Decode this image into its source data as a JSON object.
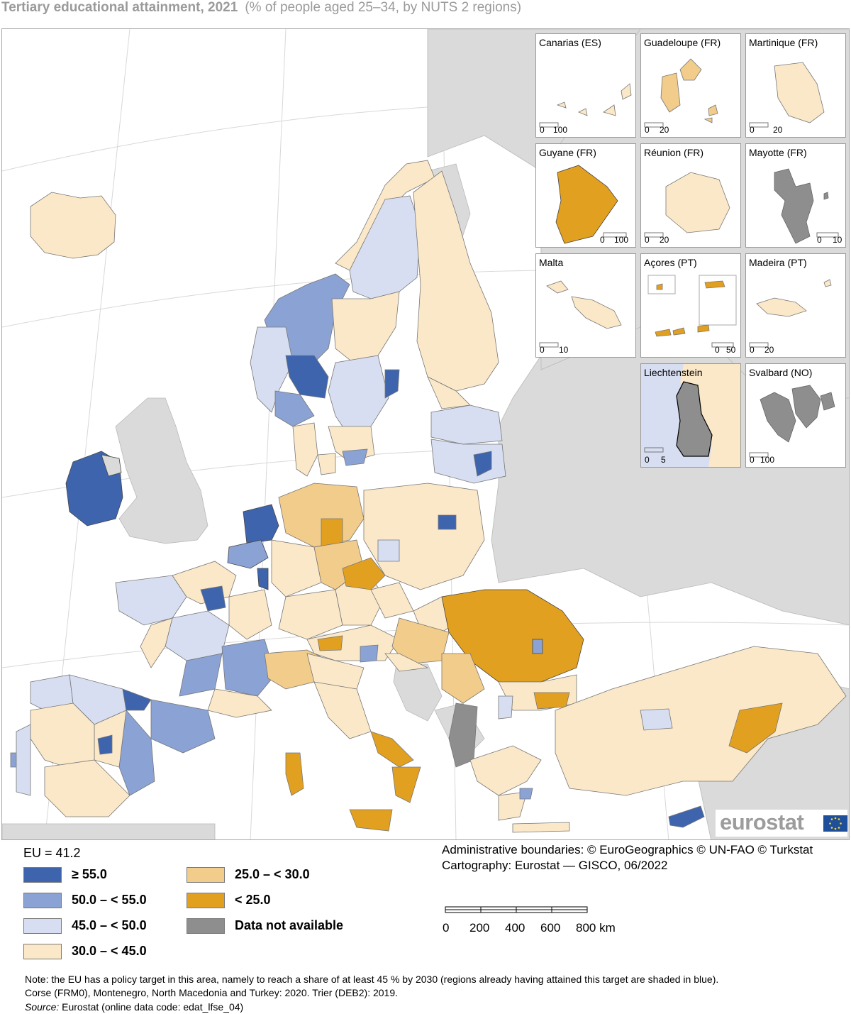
{
  "title": "Tertiary educational attainment, 2021",
  "subtitle": "(% of people aged 25–34, by NUTS 2 regions)",
  "colors": {
    "ge55": "#3e64ad",
    "c50_55": "#8aa2d4",
    "c45_50": "#d7def1",
    "c30_45": "#fbe8c8",
    "c25_30": "#f1cc8a",
    "lt25": "#e2a020",
    "na": "#8e8e8e",
    "nonEU": "#dadada",
    "sea": "#ffffff",
    "border": "#000000"
  },
  "insets": [
    {
      "label": "Canarias (ES)",
      "scale_start": "0",
      "scale_end": "100",
      "fill": "c30_45"
    },
    {
      "label": "Guadeloupe (FR)",
      "scale_start": "0",
      "scale_end": "20",
      "fill": "c25_30"
    },
    {
      "label": "Martinique (FR)",
      "scale_start": "0",
      "scale_end": "20",
      "fill": "c30_45"
    },
    {
      "label": "Guyane (FR)",
      "scale_start": "0",
      "scale_end": "100",
      "fill": "lt25"
    },
    {
      "label": "Réunion (FR)",
      "scale_start": "0",
      "scale_end": "20",
      "fill": "c30_45"
    },
    {
      "label": "Mayotte (FR)",
      "scale_start": "0",
      "scale_end": "10",
      "fill": "na"
    },
    {
      "label": "Malta",
      "scale_start": "0",
      "scale_end": "10",
      "fill": "c30_45"
    },
    {
      "label": "Açores (PT)",
      "scale_start": "0",
      "scale_end": "50",
      "fill": "lt25"
    },
    {
      "label": "Madeira (PT)",
      "scale_start": "0",
      "scale_end": "20",
      "fill": "c30_45"
    },
    {
      "label": "Liechtenstein",
      "scale_start": "0",
      "scale_end": "5",
      "fill": "na"
    },
    {
      "label": "Svalbard (NO)",
      "scale_start": "0",
      "scale_end": "100",
      "fill": "na"
    }
  ],
  "logo": "eurostat",
  "legend": {
    "eu_value": "EU = 41.2",
    "items": [
      {
        "label": "≥ 55.0",
        "color": "#3e64ad"
      },
      {
        "label": "50.0 – < 55.0",
        "color": "#8aa2d4"
      },
      {
        "label": "45.0 – < 50.0",
        "color": "#d7def1"
      },
      {
        "label": "30.0 – < 45.0",
        "color": "#fbe8c8"
      },
      {
        "label": "25.0 – < 30.0",
        "color": "#f1cc8a"
      },
      {
        "label": "< 25.0",
        "color": "#e2a020"
      },
      {
        "label": "Data not available",
        "color": "#8e8e8e"
      }
    ]
  },
  "credits": {
    "line1": "Administrative boundaries: © EuroGeographics © UN-FAO © Turkstat",
    "line2": "Cartography: Eurostat — GISCO, 06/2022"
  },
  "scalebar": {
    "labels": [
      "0",
      "200",
      "400",
      "600",
      "800 km"
    ]
  },
  "note": "Note: the EU has a policy target in this area, namely to reach a share of at least 45 % by 2030 (regions already having attained this target are shaded in blue). Corse (FRM0), Montenegro, North Macedonia and Turkey: 2020. Trier (DEB2): 2019.",
  "source_prefix": "Source:",
  "source_text": " Eurostat (online data code: edat_lfse_04)"
}
